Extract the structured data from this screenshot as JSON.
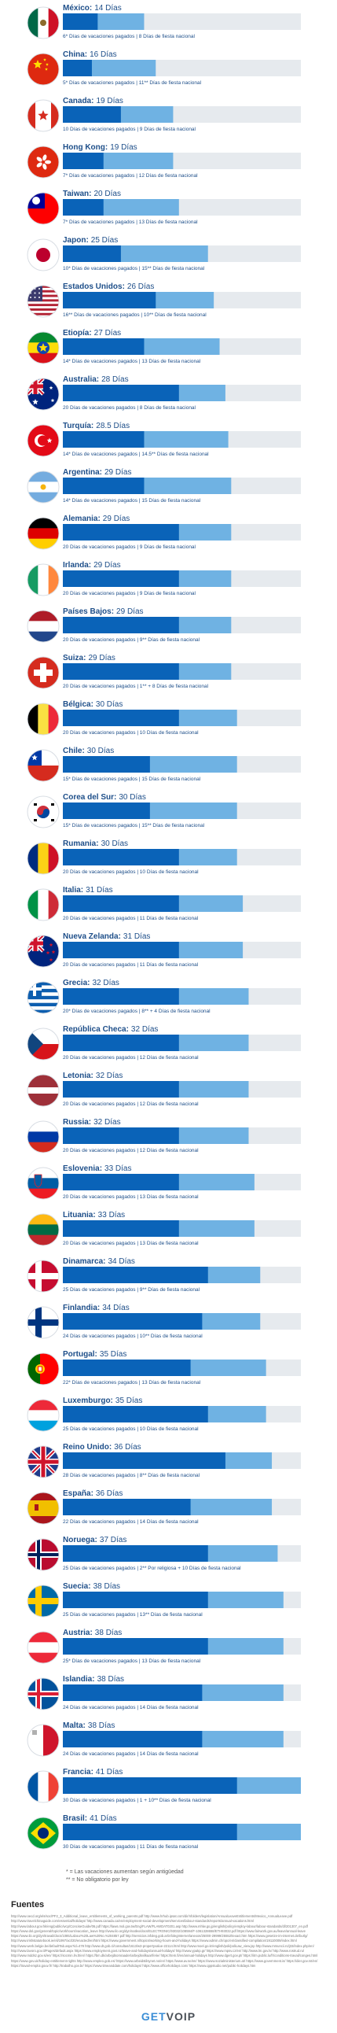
{
  "chart_data": {
    "type": "bar",
    "orientation": "horizontal",
    "stacked": true,
    "colors": {
      "vacation": "#0a63b8",
      "holidays": "#6fb2e3",
      "track": "#e6eaee",
      "name": "#1d4e89",
      "label": "#1d4e89"
    },
    "series": [
      {
        "name": "Días de vacaciones pagados",
        "color": "#0a63b8"
      },
      {
        "name": "Días de fiesta nacional",
        "color": "#6fb2e3"
      }
    ],
    "max_days": 41,
    "rows": [
      {
        "name": "México",
        "total_text": "14 Días",
        "vac": 6,
        "hol": 8,
        "flag": "mexico",
        "sub": "6* Días de vacaciones pagados | 8 Días de fiesta nacional"
      },
      {
        "name": "China",
        "total_text": "16 Días",
        "vac": 5,
        "hol": 11,
        "flag": "china",
        "sub": "5* Días de vacaciones pagados | 11** Días de fiesta nacional"
      },
      {
        "name": "Canada",
        "total_text": "19 Días",
        "vac": 10,
        "hol": 9,
        "flag": "canada",
        "sub": "10 Días de vacaciones pagados | 9 Días de fiesta nacional"
      },
      {
        "name": "Hong Kong",
        "total_text": "19 Días",
        "vac": 7,
        "hol": 12,
        "flag": "hongkong",
        "sub": "7* Días de vacaciones pagados | 12 Días de fiesta nacional"
      },
      {
        "name": "Taiwan",
        "total_text": "20 Días",
        "vac": 7,
        "hol": 13,
        "flag": "taiwan",
        "sub": "7* Días de vacaciones pagados | 13 Días de fiesta nacional"
      },
      {
        "name": "Japon",
        "total_text": "25 Días",
        "vac": 10,
        "hol": 15,
        "flag": "japan",
        "sub": "10* Días de vacaciones pagados | 15** Días de fiesta nacional"
      },
      {
        "name": "Estados Unidos",
        "total_text": "26 Días",
        "vac": 16,
        "hol": 10,
        "flag": "usa",
        "sub": "16** Días de vacaciones pagados | 10** Días de fiesta nacional"
      },
      {
        "name": "Etiopía",
        "total_text": "27 Días",
        "vac": 14,
        "hol": 13,
        "flag": "ethiopia",
        "sub": "14* Días de vacaciones pagados | 13 Días de fiesta nacional"
      },
      {
        "name": "Australia",
        "total_text": "28 Días",
        "vac": 20,
        "hol": 8,
        "flag": "australia",
        "sub": "20 Días de vacaciones pagados | 8 Días de fiesta nacional"
      },
      {
        "name": "Turquía",
        "total_text": "28.5 Días",
        "vac": 14,
        "hol": 14.5,
        "flag": "turkey",
        "sub": "14* Días de vacaciones pagados | 14.5** Días de fiesta nacional"
      },
      {
        "name": "Argentina",
        "total_text": "29 Días",
        "vac": 14,
        "hol": 15,
        "flag": "argentina",
        "sub": "14* Días de vacaciones pagados | 15 Días de fiesta nacional"
      },
      {
        "name": "Alemania",
        "total_text": "29 Días",
        "vac": 20,
        "hol": 9,
        "flag": "germany",
        "sub": "20 Días de vacaciones pagados | 9 Días de fiesta nacional"
      },
      {
        "name": "Irlanda",
        "total_text": "29 Días",
        "vac": 20,
        "hol": 9,
        "flag": "ireland",
        "sub": "20 Días de vacaciones pagados | 9 Días de fiesta nacional"
      },
      {
        "name": "Países Bajos",
        "total_text": "29 Días",
        "vac": 20,
        "hol": 9,
        "flag": "netherlands",
        "sub": "20 Días de vacaciones pagados | 9** Días de fiesta nacional"
      },
      {
        "name": "Suiza",
        "total_text": "29 Días",
        "vac": 20,
        "hol": 9,
        "flag": "switzerland",
        "sub": "20 Días de vacaciones pagados | 1** + 8 Días de fiesta nacional"
      },
      {
        "name": "Bélgica",
        "total_text": "30 Días",
        "vac": 20,
        "hol": 10,
        "flag": "belgium",
        "sub": "20 Días de vacaciones pagados | 10 Días de fiesta nacional"
      },
      {
        "name": "Chile",
        "total_text": "30 Días",
        "vac": 15,
        "hol": 15,
        "flag": "chile",
        "sub": "15* Días de vacaciones pagados | 15 Días de fiesta nacional"
      },
      {
        "name": "Corea del Sur",
        "total_text": "30 Días",
        "vac": 15,
        "hol": 15,
        "flag": "korea",
        "sub": "15* Días de vacaciones pagados | 15** Días de fiesta nacional"
      },
      {
        "name": "Rumania",
        "total_text": "30 Días",
        "vac": 20,
        "hol": 10,
        "flag": "romania",
        "sub": "20 Días de vacaciones pagados | 10 Días de fiesta nacional"
      },
      {
        "name": "Italia",
        "total_text": "31 Días",
        "vac": 20,
        "hol": 11,
        "flag": "italy",
        "sub": "20 Días de vacaciones pagados | 11 Días de fiesta nacional"
      },
      {
        "name": "Nueva Zelanda",
        "total_text": "31 Días",
        "vac": 20,
        "hol": 11,
        "flag": "newzealand",
        "sub": "20 Días de vacaciones pagados | 11 Días de fiesta nacional"
      },
      {
        "name": "Grecia",
        "total_text": "32 Días",
        "vac": 20,
        "hol": 12,
        "flag": "greece",
        "sub": "20* Días de vacaciones pagados | 8** + 4 Días de fiesta nacional"
      },
      {
        "name": "República Checa",
        "total_text": "32 Días",
        "vac": 20,
        "hol": 12,
        "flag": "czech",
        "sub": "20 Días de vacaciones pagados | 12 Días de fiesta nacional"
      },
      {
        "name": "Letonia",
        "total_text": "32 Días",
        "vac": 20,
        "hol": 12,
        "flag": "latvia",
        "sub": "20 Días de vacaciones pagados | 12 Días de fiesta nacional"
      },
      {
        "name": "Russia",
        "total_text": "32 Días",
        "vac": 20,
        "hol": 12,
        "flag": "russia",
        "sub": "20 Días de vacaciones pagados | 12 Días de fiesta nacional"
      },
      {
        "name": "Eslovenia",
        "total_text": "33 Días",
        "vac": 20,
        "hol": 13,
        "flag": "slovenia",
        "sub": "20 Días de vacaciones pagados | 13 Días de fiesta nacional"
      },
      {
        "name": "Lituania",
        "total_text": "33 Días",
        "vac": 20,
        "hol": 13,
        "flag": "lithuania",
        "sub": "20 Días de vacaciones pagados | 13 Días de fiesta nacional"
      },
      {
        "name": "Dinamarca",
        "total_text": "34 Días",
        "vac": 25,
        "hol": 9,
        "flag": "denmark",
        "sub": "25 Días de vacaciones pagados | 9** Días de fiesta nacional"
      },
      {
        "name": "Finlandia",
        "total_text": "34 Días",
        "vac": 24,
        "hol": 10,
        "flag": "finland",
        "sub": "24 Días de vacaciones pagados | 10** Días de fiesta nacional"
      },
      {
        "name": "Portugal",
        "total_text": "35 Días",
        "vac": 22,
        "hol": 13,
        "flag": "portugal",
        "sub": "22* Días de vacaciones pagados | 13 Días de fiesta nacional"
      },
      {
        "name": "Luxemburgo",
        "total_text": "35 Días",
        "vac": 25,
        "hol": 10,
        "flag": "luxembourg",
        "sub": "25 Días de vacaciones pagados | 10 Días de fiesta nacional"
      },
      {
        "name": "Reino Unido",
        "total_text": "36 Días",
        "vac": 28,
        "hol": 8,
        "flag": "uk",
        "sub": "28 Días de vacaciones pagados | 8** Días de fiesta nacional"
      },
      {
        "name": "España",
        "total_text": "36 Días",
        "vac": 22,
        "hol": 14,
        "flag": "spain",
        "sub": "22 Días de vacaciones pagados | 14 Días de fiesta nacional"
      },
      {
        "name": "Noruega",
        "total_text": "37 Días",
        "vac": 25,
        "hol": 12,
        "flag": "norway",
        "sub": "25 Días de vacaciones pagados | 2** Por religiosa + 10 Días de fiesta nacional"
      },
      {
        "name": "Suecia",
        "total_text": "38 Días",
        "vac": 25,
        "hol": 13,
        "flag": "sweden",
        "sub": "25 Días de vacaciones pagados | 13** Días de fiesta nacional"
      },
      {
        "name": "Austria",
        "total_text": "38 Días",
        "vac": 25,
        "hol": 13,
        "flag": "austria",
        "sub": "25* Días de vacaciones pagados | 13 Días de fiesta nacional"
      },
      {
        "name": "Islandia",
        "total_text": "38 Días",
        "vac": 24,
        "hol": 14,
        "flag": "iceland",
        "sub": "24 Días de vacaciones pagados | 14 Días de fiesta nacional"
      },
      {
        "name": "Malta",
        "total_text": "38 Días",
        "vac": 24,
        "hol": 14,
        "flag": "malta",
        "sub": "24 Días de vacaciones pagados | 14 Días de fiesta nacional"
      },
      {
        "name": "Francia",
        "total_text": "41 Días",
        "vac": 30,
        "hol": 11,
        "flag": "france",
        "sub": "30 Días de vacaciones pagados | 1 + 10** Días de fiesta nacional"
      },
      {
        "name": "Brasil",
        "total_text": "41 Días",
        "vac": 30,
        "hol": 11,
        "flag": "brazil",
        "sub": "30 Días de vacaciones pagados | 11 Días de fiesta nacional"
      }
    ]
  },
  "notes": {
    "note1": "* = Las vacaciones aumentan según antigüedad",
    "note2": "** = No obligatorio por ley"
  },
  "sources": {
    "title": "Fuentes",
    "text": "http://www.oecd.org/els/soc/PF2_3_Additional_leave_entitlements_of_working_parents.pdf http://www.hrhub.ipsat.com/dir/nfolders/legislation/AnnualLeaveEntitlements/Mexico_AnnualLeave.pdf http://www.travelchinaguide.com/essential/holidays/ http://www.canada.ca/en/employment-social-development/services/labour-standards/reports/annual-vacations.html http://www.labour.gov.hk/eng/public/wcp/ConciseGuide/06.pdf https://laws.mol.gov.tw/Eng/FLAW/FLAWDAT0201.asp http://www.mhlw.go.jp/english/policy/employ-labour/labour-standards/dl/201307_en.pdf https://www.dol.gov/general/topic/workhours/vacation_leave http://www.ilo.org/dyn/natlex/docs/ELECTRONIC/93032/108594/F-1061328658/ETH93032.pdf https://www.fairwork.gov.au/leave/annual-leave https://www.ilo.org/dyn/travail/docs/1085/Labour%20Law%20No.%204857.pdf http://servicios.infoleg.gob.ar/infolegInternet/anexos/25000-29999/25552/texact.htm https://www.gesetze-im-internet.de/burlg/ http://www.irishstatutebook.ie/eli/1997/act/20/enacted/en/html https://www.government.nl/topics/working-hours-and-holidays https://www.admin.ch/opc/en/classified-compilation/19110009/index.html http://www.werk.belgie.be/defaultTab.aspx?id=478 http://www.dt.gob.cl/consultas/1613/w3-propertyvalue-22114.html http://www.moel.go.kr/english/poli/poliLaw_view.jsp http://www.mmuncii.ro/j33/index.php/en/ http://www.lavoro.gov.it/Pages/default.aspx https://www.employment.govt.nz/leave-and-holidays/annual-holidays/ http://www.ypakp.gr/ https://www.mpsv.cz/en/ http://www.lm.gov.lv/ http://www.rostrud.ru/ http://www.mddsz.gov.si/en/ https://socmin.lrv.lt/en/ https://bm.dk/arbejdsomraader/arbejdsvilkaar/ferie/ https://tem.fi/en/annual-holidays http://www.dgert.gov.pt/ https://itm.public.lu/fr/conditions-travail/conges.html https://www.gov.uk/holiday-entitlement-rights http://www.empleo.gob.es/ https://www.arbeidstilsynet.no/en/ https://www.av.se/en/ https://www.sozialministerium.at/ https://www.government.is/ https://dier.gov.mt/en/ https://travail-emploi.gouv.fr/ http://trabalho.gov.br/ https://www.timeanddate.com/holidays/ https://www.officeholidays.com/ https://www.qppstudio.net/public-holidays.htm"
  },
  "brand": {
    "part1": "GET",
    "part2": "VOIP"
  }
}
